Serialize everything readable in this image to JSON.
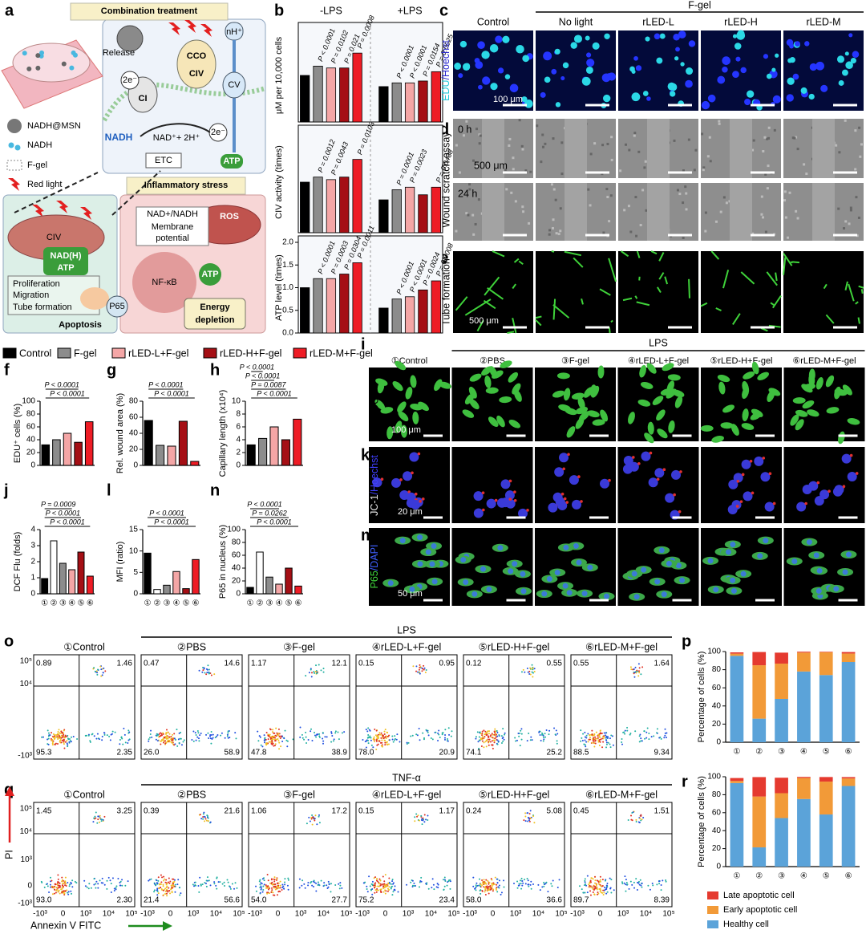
{
  "panel_labels": [
    "a",
    "b",
    "c",
    "d",
    "e",
    "f",
    "g",
    "h",
    "i",
    "j",
    "k",
    "l",
    "m",
    "n",
    "o",
    "p",
    "q",
    "r"
  ],
  "a": {
    "texts": [
      "Combination treatment",
      "NADH@MSN",
      "NADH",
      "F-gel",
      "Red light",
      "Release",
      "2e⁻",
      "CI",
      "CCO",
      "CIV",
      "nH⁺",
      "CV",
      "NADH",
      "NAD⁺+ 2H⁺",
      "2e⁻",
      "ETC",
      "ATP",
      "Inflammatory stress",
      "NAD+/NADH",
      "Membrane",
      "potential",
      "ROS",
      "CIV",
      "NAD(H)",
      "ATP",
      "NF-κB",
      "ATP",
      "P65",
      "Proliferation",
      "Migration",
      "Tube formation",
      "Apoptosis",
      "Energy",
      "depletion"
    ]
  },
  "b": {
    "group_labels": [
      "-LPS",
      "+LPS"
    ],
    "charts": [
      {
        "ylabel": "μM per 10,000 cells",
        "ylim": [
          0,
          5
        ],
        "values": [
          2.5,
          3.0,
          2.9,
          2.9,
          3.7,
          1.9,
          2.1,
          2.1,
          2.2,
          2.7
        ],
        "pvalues": [
          [
            "P < 0.0001",
            "P = 0.0102",
            "P = 0.021",
            "P = 0.0008"
          ],
          [
            "P < 0.0001",
            "P < 0.0001",
            "P = 0.0154",
            "P = 0.0025"
          ]
        ]
      },
      {
        "ylabel": "CIV activity (times)",
        "ylim": [
          0,
          2
        ],
        "values": [
          1.0,
          1.1,
          1.05,
          1.1,
          1.45,
          0.65,
          0.85,
          0.9,
          0.75,
          0.9
        ],
        "pvalues": [
          [
            "P = 0.0012",
            "P = 0.0043",
            "P = 0.0103"
          ],
          [
            "P = 0.0001",
            "P = 0.0023",
            "P = 0.0438"
          ]
        ]
      },
      {
        "ylabel": "ATP level (times)",
        "ylim": [
          0,
          2
        ],
        "yticks": [
          {
            "value": 0,
            "label": "0.0"
          },
          0.5,
          {
            "value": 1,
            "label": "1.0"
          },
          1.5,
          {
            "value": 2,
            "label": "2.0"
          }
        ],
        "values": [
          1.0,
          1.2,
          1.2,
          1.3,
          1.55,
          0.55,
          0.75,
          0.8,
          0.95,
          1.15
        ],
        "pvalues": [
          [
            "P < 0.0001",
            "P = 0.0003",
            "P = 0.0304",
            "P = 0.0011"
          ],
          [
            "P < 0.0001",
            "P < 0.0001",
            "P = 0.0024",
            "P = 0.0008"
          ]
        ]
      }
    ]
  },
  "legend": {
    "items": [
      {
        "name": "Control",
        "color": "#000000"
      },
      {
        "name": "F-gel",
        "color": "#8c8c8c"
      },
      {
        "name": "rLED-L+F-gel",
        "color": "#f4a6a6"
      },
      {
        "name": "rLED-H+F-gel",
        "color": "#a50f15"
      },
      {
        "name": "rLED-M+F-gel",
        "color": "#ee1c25"
      }
    ]
  },
  "c": {
    "group_label": "F-gel",
    "columns": [
      "Control",
      "No light",
      "rLED-L",
      "rLED-H",
      "rLED-M"
    ],
    "row_label_parts": [
      "EDU",
      "/Hoechst"
    ],
    "scale_bar": "100 μm"
  },
  "d": {
    "row_label": "Wound scratch assay",
    "rows": [
      "0 h",
      "24 h"
    ],
    "scale_bar": "500 μm"
  },
  "e": {
    "row_label": "Tube formation",
    "scale_bar": "500 μm"
  },
  "f": {
    "ylabel": "EDU⁺ cells (%)",
    "ylim": [
      0,
      100
    ],
    "yticks": [
      0,
      20,
      40,
      60,
      80,
      100
    ],
    "values": [
      32,
      40,
      50,
      36,
      68
    ],
    "colors": [
      "#000000",
      "#8c8c8c",
      "#f4a6a6",
      "#a50f15",
      "#ee1c25"
    ],
    "pvalues": [
      "P < 0.0001",
      "P < 0.0001"
    ]
  },
  "g": {
    "ylabel": "Rel. wound area (%)",
    "ylim": [
      0,
      80
    ],
    "yticks": [
      0,
      20,
      40,
      60,
      80
    ],
    "values": [
      56,
      25,
      24,
      55,
      5
    ],
    "colors": [
      "#000000",
      "#8c8c8c",
      "#f4a6a6",
      "#a50f15",
      "#ee1c25"
    ],
    "pvalues": [
      "P < 0.0001",
      "P < 0.0001"
    ]
  },
  "h": {
    "ylabel": "Capillary length (x10⁴)",
    "ylim": [
      0,
      10
    ],
    "yticks": [
      0,
      2,
      4,
      6,
      8,
      10
    ],
    "values": [
      3.2,
      4.2,
      6.0,
      4.0,
      7.2
    ],
    "colors": [
      "#000000",
      "#8c8c8c",
      "#f4a6a6",
      "#a50f15",
      "#ee1c25"
    ],
    "pvalues": [
      "P < 0.0001",
      "P = 0.0087",
      "P < 0.0001",
      "P < 0.0001"
    ]
  },
  "i": {
    "group_label": "LPS",
    "columns": [
      "①Control",
      "②PBS",
      "③F-gel",
      "④rLED-L+F-gel",
      "⑤rLED-H+F-gel",
      "⑥rLED-M+F-gel"
    ],
    "row_label": "DCF",
    "scale_bar": "100 μm"
  },
  "k": {
    "row_label_parts": [
      "JC-1",
      "/Hoechst"
    ],
    "scale_bar": "20 μm"
  },
  "m": {
    "row_label_parts": [
      "P65",
      "/DAPI"
    ],
    "scale_bar": "50 μm"
  },
  "j": {
    "ylabel": "DCF Flu (folds)",
    "ylim": [
      0,
      4
    ],
    "yticks": [
      0,
      1,
      2,
      3,
      4
    ],
    "categories": [
      "①",
      "②",
      "③",
      "④",
      "⑤",
      "⑥"
    ],
    "values": [
      0.95,
      3.3,
      1.9,
      1.5,
      2.6,
      1.1
    ],
    "colors": [
      "#000000",
      "#ffffff",
      "#8c8c8c",
      "#f4a6a6",
      "#a50f15",
      "#ee1c25"
    ],
    "pvalues": [
      "P < 0.0001",
      "P < 0.0001",
      "P = 0.0009"
    ]
  },
  "l": {
    "ylabel": "MFI (ratio)",
    "ylim": [
      0,
      15
    ],
    "yticks": [
      0,
      5,
      10,
      15
    ],
    "categories": [
      "①",
      "②",
      "③",
      "④",
      "⑤",
      "⑥"
    ],
    "values": [
      9.5,
      1.0,
      2.0,
      5.2,
      1.2,
      8.0
    ],
    "colors": [
      "#000000",
      "#ffffff",
      "#8c8c8c",
      "#f4a6a6",
      "#a50f15",
      "#ee1c25"
    ],
    "pvalues": [
      "P < 0.0001",
      "P < 0.0001"
    ]
  },
  "n": {
    "ylabel": "P65 in nucleus (%)",
    "ylim": [
      0,
      100
    ],
    "yticks": [
      0,
      20,
      40,
      60,
      80,
      100
    ],
    "categories": [
      "①",
      "②",
      "③",
      "④",
      "⑤",
      "⑥"
    ],
    "values": [
      10,
      65,
      26,
      15,
      40,
      12
    ],
    "colors": [
      "#000000",
      "#ffffff",
      "#8c8c8c",
      "#f4a6a6",
      "#a50f15",
      "#ee1c25"
    ],
    "pvalues": [
      "P < 0.0001",
      "P = 0.0262",
      "P < 0.0001"
    ]
  },
  "o": {
    "group_label": "LPS",
    "columns": [
      "①Control",
      "②PBS",
      "③F-gel",
      "④rLED-L+F-gel",
      "⑤rLED-H+F-gel",
      "⑥rLED-M+F-gel"
    ],
    "quadrants": [
      [
        "0.89",
        "1.46",
        "95.3",
        "2.35"
      ],
      [
        "0.47",
        "14.6",
        "26.0",
        "58.9"
      ],
      [
        "1.17",
        "12.1",
        "47.8",
        "38.9"
      ],
      [
        "0.15",
        "0.95",
        "78.0",
        "20.9"
      ],
      [
        "0.12",
        "0.55",
        "74.1",
        "25.2"
      ],
      [
        "0.55",
        "1.64",
        "88.5",
        "9.34"
      ]
    ],
    "yticks": [
      "10⁵",
      "10⁴",
      "-10³"
    ]
  },
  "q": {
    "group_label": "TNF-α",
    "columns": [
      "①Control",
      "②PBS",
      "③F-gel",
      "④rLED-L+F-gel",
      "⑤rLED-H+F-gel",
      "⑥rLED-M+F-gel"
    ],
    "quadrants": [
      [
        "1.45",
        "3.25",
        "93.0",
        "2.30"
      ],
      [
        "0.39",
        "21.6",
        "21.4",
        "56.6"
      ],
      [
        "1.06",
        "17.2",
        "54.0",
        "27.7"
      ],
      [
        "0.15",
        "1.17",
        "75.2",
        "23.4"
      ],
      [
        "0.24",
        "5.08",
        "58.0",
        "36.6"
      ],
      [
        "0.45",
        "1.51",
        "89.7",
        "8.39"
      ]
    ],
    "yticks": [
      "10⁵",
      "10⁴",
      "10³",
      "0",
      "-10³"
    ],
    "xticks": [
      "-10³",
      "0",
      "10³",
      "10⁴",
      "10⁵"
    ],
    "ylabel": "PI",
    "xlabel": "Annexin V FITC"
  },
  "p": {
    "ylabel": "Percentage of cells (%)",
    "categories": [
      "①",
      "②",
      "③",
      "④",
      "⑤",
      "⑥"
    ],
    "ylim": [
      0,
      100
    ],
    "yticks": [
      0,
      20,
      40,
      60,
      80,
      100
    ],
    "series": [
      {
        "name": "Healthy cell",
        "color": "#5ba3d9",
        "values": [
          95.3,
          26.0,
          47.8,
          78.0,
          74.1,
          88.5
        ]
      },
      {
        "name": "Early apoptotic cell",
        "color": "#f29a38",
        "values": [
          2.35,
          58.9,
          38.9,
          20.9,
          25.2,
          9.34
        ]
      },
      {
        "name": "Late apoptotic cell",
        "color": "#e53a2f",
        "values": [
          1.46,
          14.6,
          12.1,
          0.95,
          0.55,
          1.64
        ]
      }
    ]
  },
  "r": {
    "ylabel": "Percentage of cells (%)",
    "categories": [
      "①",
      "②",
      "③",
      "④",
      "⑤",
      "⑥"
    ],
    "ylim": [
      0,
      100
    ],
    "yticks": [
      0,
      20,
      40,
      60,
      80,
      100
    ],
    "series": [
      {
        "name": "Healthy cell",
        "color": "#5ba3d9",
        "values": [
          93.0,
          21.4,
          54.0,
          75.2,
          58.0,
          89.7
        ]
      },
      {
        "name": "Early apoptotic cell",
        "color": "#f29a38",
        "values": [
          2.3,
          56.6,
          27.7,
          23.4,
          36.6,
          8.39
        ]
      },
      {
        "name": "Late apoptotic cell",
        "color": "#e53a2f",
        "values": [
          3.25,
          21.6,
          17.2,
          1.17,
          5.08,
          1.51
        ]
      }
    ]
  }
}
